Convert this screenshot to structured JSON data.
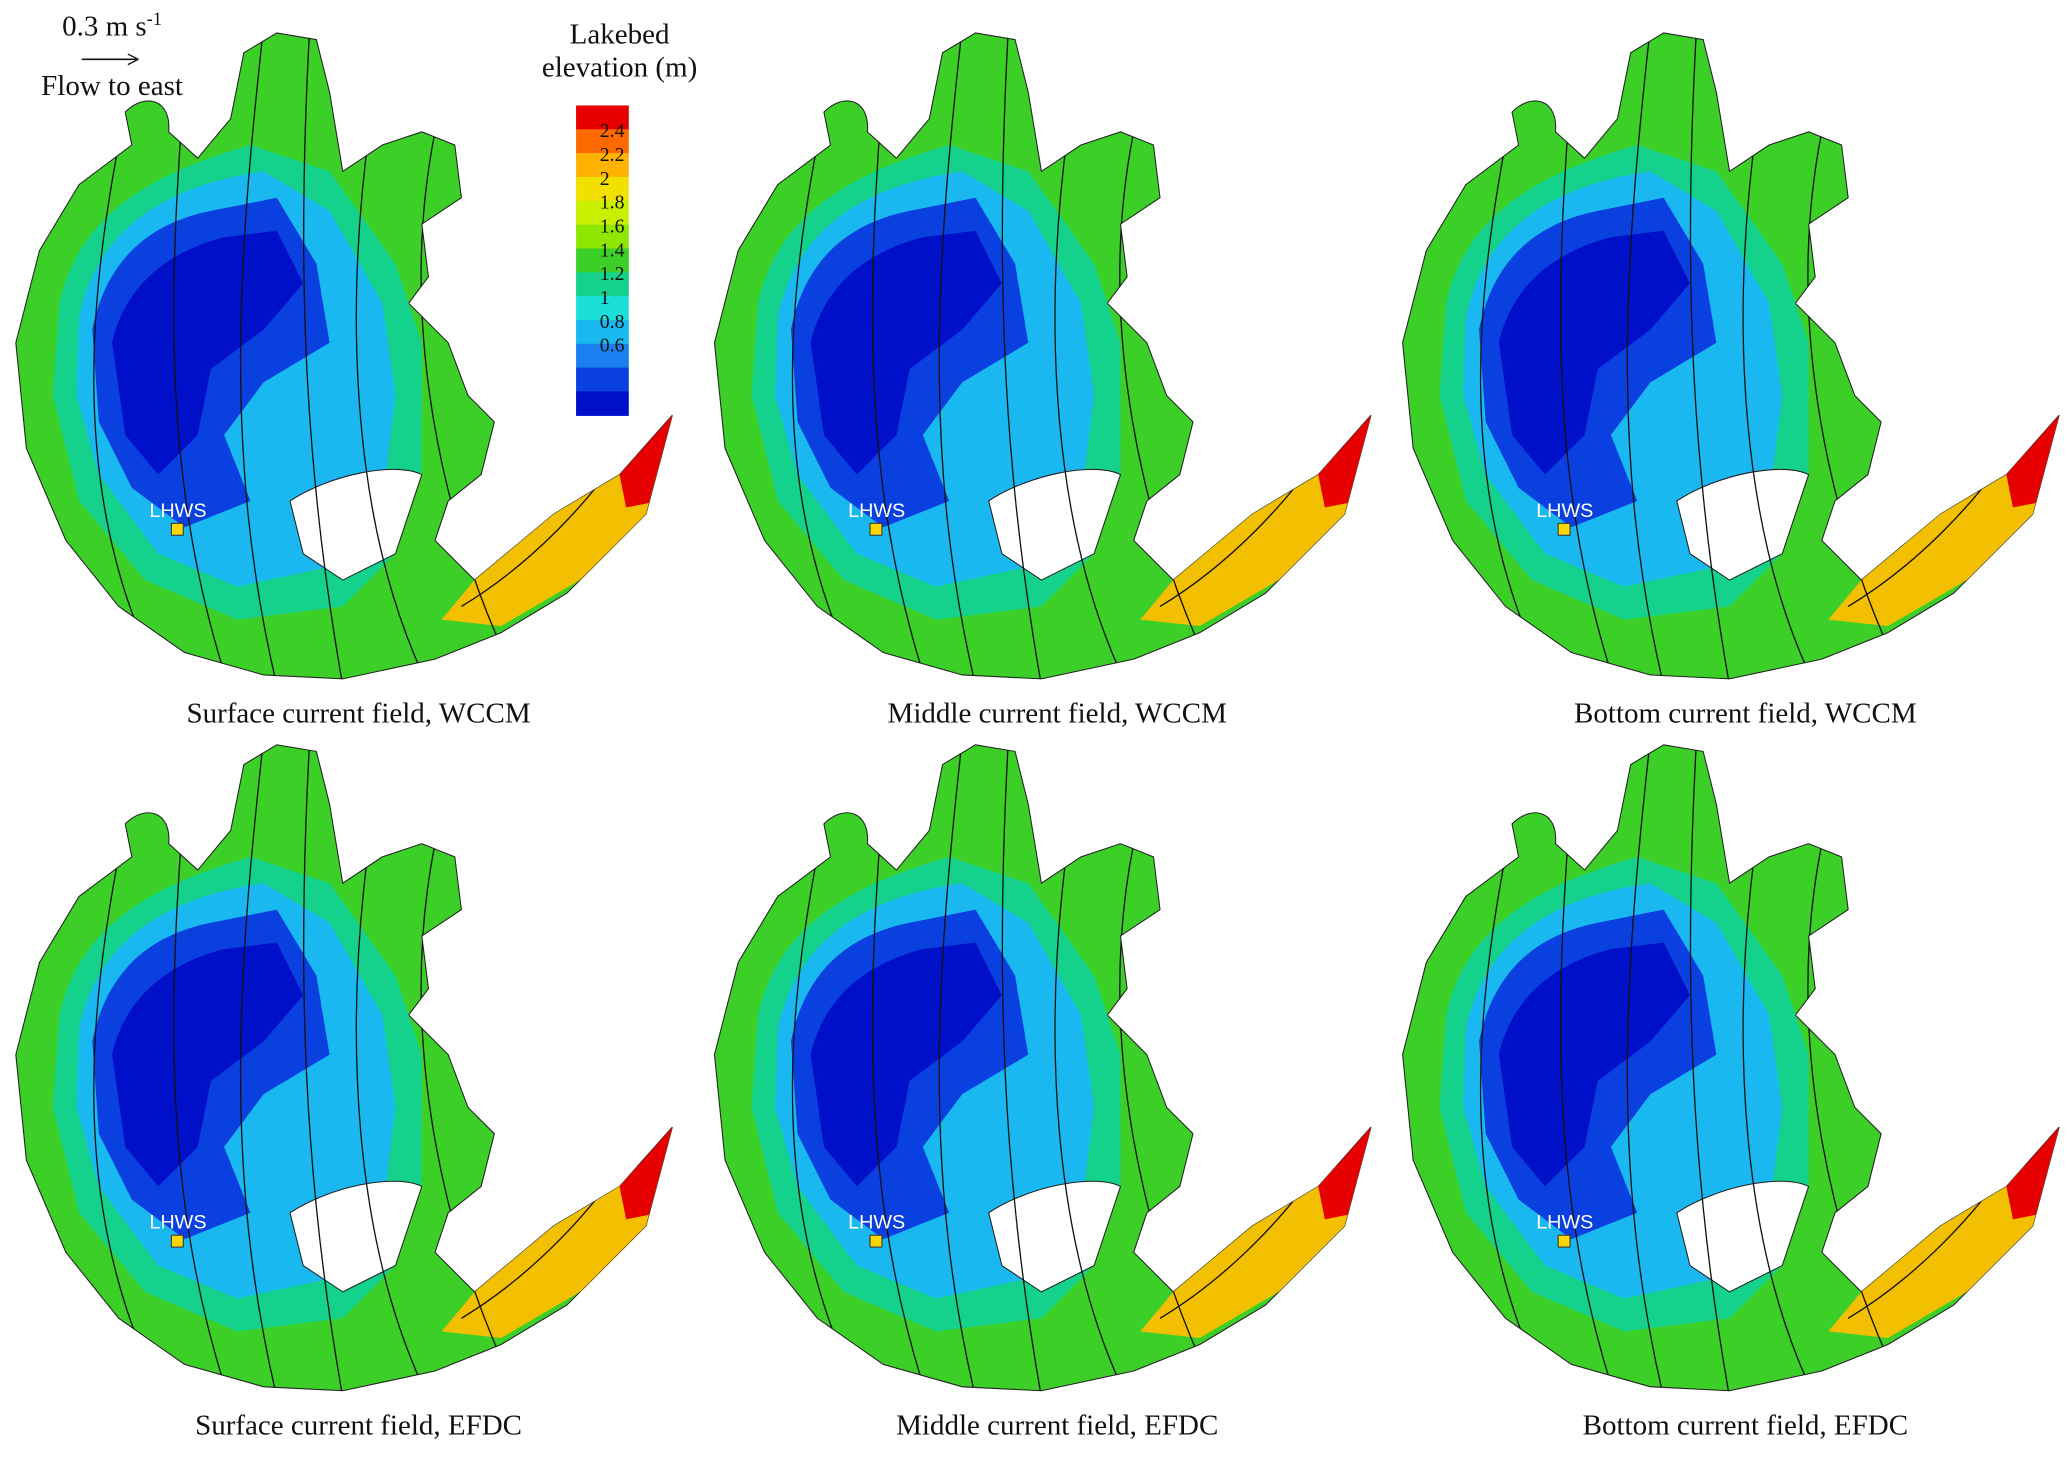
{
  "scale_bar": {
    "label": "0.3 m s",
    "superscript": "-1",
    "direction": "Flow to east"
  },
  "legend": {
    "title": [
      "Lakebed",
      "elevation (m)"
    ],
    "levels": [
      2.4,
      2.2,
      2,
      1.8,
      1.6,
      1.4,
      1.2,
      1,
      0.8,
      0.6
    ],
    "colors": [
      "#e60000",
      "#ff6a00",
      "#ffb300",
      "#f2e000",
      "#c8f000",
      "#8fe600",
      "#3ccf28",
      "#14d28c",
      "#1ae0d8",
      "#1ab8f0",
      "#1a80f0",
      "#0a40e0",
      "#0010c8"
    ]
  },
  "panels": [
    {
      "caption": "Surface current field, WCCM",
      "station": "LHWS"
    },
    {
      "caption": "Middle current field, WCCM",
      "station": "LHWS"
    },
    {
      "caption": "Bottom current field, WCCM",
      "station": "LHWS"
    },
    {
      "caption": "Surface current field, EFDC",
      "station": "LHWS"
    },
    {
      "caption": "Middle current field, EFDC",
      "station": "LHWS"
    },
    {
      "caption": "Bottom current field, EFDC",
      "station": "LHWS"
    }
  ]
}
